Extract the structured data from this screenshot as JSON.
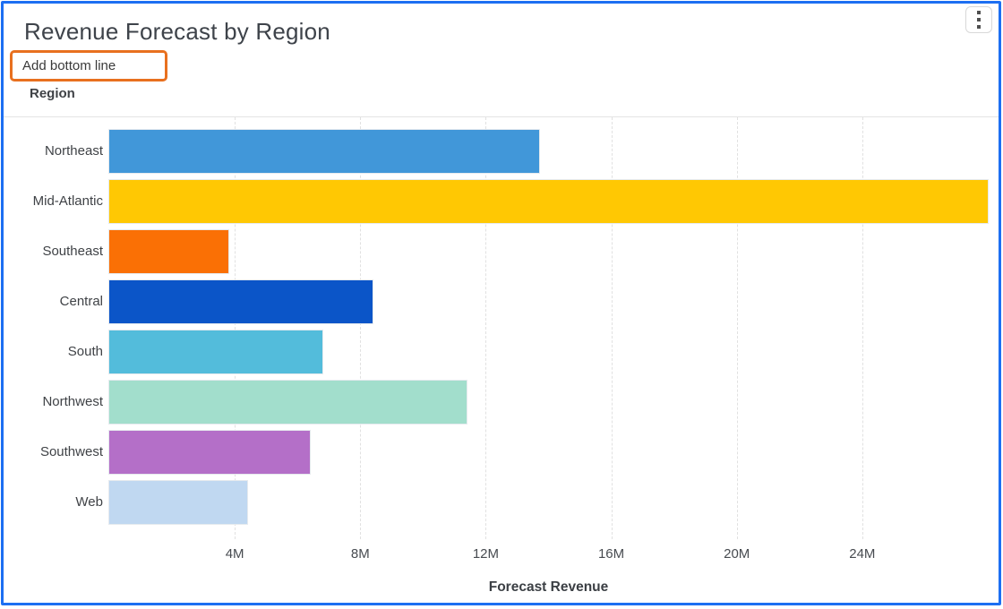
{
  "window": {
    "frame_color": "#1D6FF2"
  },
  "header": {
    "title": "Revenue Forecast by Region",
    "menu_icon": "kebab-vertical-icon",
    "action_link": {
      "label": "Add bottom line",
      "highlight_color": "#E8701F"
    }
  },
  "chart_data": {
    "type": "bar",
    "orientation": "horizontal",
    "title": "Revenue Forecast by Region",
    "ylabel": "Region",
    "xlabel": "Forecast Revenue",
    "categories": [
      "Northeast",
      "Mid-Atlantic",
      "Southeast",
      "Central",
      "South",
      "Northwest",
      "Southwest",
      "Web"
    ],
    "values": [
      13.7,
      28.0,
      3.8,
      8.4,
      6.8,
      11.4,
      6.4,
      4.4
    ],
    "unit": "M",
    "bar_colors": [
      "#4197D9",
      "#FFC803",
      "#FA7005",
      "#0B55C8",
      "#53BCDB",
      "#A2DECC",
      "#B46FC8",
      "#C0D8F1"
    ],
    "x_ticks": [
      {
        "value": 4,
        "label": "4M"
      },
      {
        "value": 8,
        "label": "8M"
      },
      {
        "value": 12,
        "label": "12M"
      },
      {
        "value": 16,
        "label": "16M"
      },
      {
        "value": 20,
        "label": "20M"
      },
      {
        "value": 24,
        "label": "24M"
      }
    ],
    "xlim": [
      0,
      28
    ],
    "grid": "vertical-dashed",
    "legend": "none"
  }
}
